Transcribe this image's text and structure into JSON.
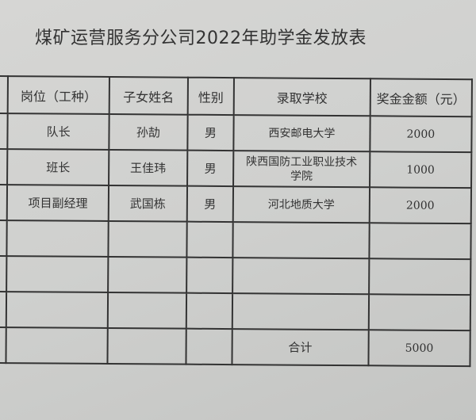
{
  "title": "煤矿运营服务分公司2022年助学金发放表",
  "headers": [
    "岗位（工种）",
    "子女姓名",
    "性别",
    "录取学校",
    "奖金金额（元）"
  ],
  "rows": [
    {
      "position": "队长",
      "name": "孙劼",
      "gender": "男",
      "school": "西安邮电大学",
      "amount": "2000"
    },
    {
      "position": "班长",
      "name": "王佳玮",
      "gender": "男",
      "school": "陕西国防工业职业技术学院",
      "amount": "1000"
    },
    {
      "position": "项目副经理",
      "name": "武国栋",
      "gender": "男",
      "school": "河北地质大学",
      "amount": "2000"
    }
  ],
  "total": {
    "label": "合计",
    "amount": "5000"
  }
}
